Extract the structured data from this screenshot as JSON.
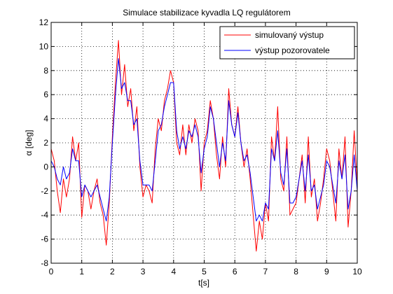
{
  "chart_data": {
    "type": "line",
    "title": "Simulace stabilizace kyvadla LQ regulátorem",
    "xlabel": "t[s]",
    "ylabel": "α [deg]",
    "xlim": [
      0,
      10
    ],
    "ylim": [
      -8,
      12
    ],
    "xticks": [
      "0",
      "1",
      "2",
      "3",
      "4",
      "5",
      "6",
      "7",
      "8",
      "9",
      "10"
    ],
    "yticks": [
      "-8",
      "-6",
      "-4",
      "-2",
      "0",
      "2",
      "4",
      "6",
      "8",
      "10",
      "12"
    ],
    "grid": true,
    "legend_position": "top-right",
    "x": [
      0,
      0.1,
      0.2,
      0.3,
      0.4,
      0.5,
      0.6,
      0.7,
      0.8,
      0.9,
      1.0,
      1.1,
      1.2,
      1.3,
      1.4,
      1.5,
      1.6,
      1.7,
      1.8,
      1.9,
      2.0,
      2.1,
      2.2,
      2.3,
      2.4,
      2.5,
      2.6,
      2.7,
      2.8,
      2.9,
      3.0,
      3.1,
      3.2,
      3.3,
      3.4,
      3.5,
      3.6,
      3.7,
      3.8,
      3.9,
      4.0,
      4.1,
      4.2,
      4.3,
      4.4,
      4.5,
      4.6,
      4.7,
      4.8,
      4.9,
      5.0,
      5.1,
      5.2,
      5.3,
      5.4,
      5.5,
      5.6,
      5.7,
      5.8,
      5.9,
      6.0,
      6.1,
      6.2,
      6.3,
      6.4,
      6.5,
      6.6,
      6.7,
      6.8,
      6.9,
      7.0,
      7.1,
      7.2,
      7.3,
      7.4,
      7.5,
      7.6,
      7.7,
      7.8,
      7.9,
      8.0,
      8.1,
      8.2,
      8.3,
      8.4,
      8.5,
      8.6,
      8.7,
      8.8,
      8.9,
      9.0,
      9.1,
      9.2,
      9.3,
      9.4,
      9.5,
      9.6,
      9.7,
      9.8,
      9.9,
      10.0
    ],
    "series": [
      {
        "name": "simulovaný výstup",
        "color": "#ff0000",
        "values": [
          1.5,
          0.5,
          -2.0,
          -3.8,
          -1.0,
          -2.5,
          -1.0,
          2.5,
          0.5,
          2.0,
          -4.2,
          -1.5,
          -2.0,
          -3.5,
          -2.0,
          -1.0,
          -3.0,
          -4.0,
          -6.5,
          -3.0,
          2.5,
          7.0,
          10.5,
          6.0,
          8.5,
          5.0,
          6.5,
          3.0,
          5.0,
          0.0,
          -2.5,
          -1.5,
          -2.0,
          -3.0,
          1.5,
          4.0,
          3.0,
          5.5,
          6.5,
          8.0,
          7.0,
          2.0,
          1.0,
          3.5,
          1.0,
          3.5,
          2.0,
          4.0,
          3.0,
          -2.0,
          2.0,
          3.0,
          5.5,
          4.0,
          1.0,
          -1.0,
          2.5,
          0.0,
          6.5,
          3.5,
          2.5,
          5.0,
          2.0,
          0.0,
          1.5,
          -1.0,
          -4.0,
          -7.0,
          -4.5,
          -6.0,
          -3.0,
          -4.5,
          2.5,
          0.5,
          5.0,
          -1.0,
          -2.0,
          2.5,
          -4.0,
          -3.5,
          -3.0,
          -1.0,
          1.0,
          -3.0,
          2.5,
          -2.5,
          -1.0,
          -4.5,
          -3.0,
          -1.0,
          1.5,
          0.5,
          -2.0,
          -4.5,
          1.5,
          -1.0,
          2.5,
          -5.0,
          -2.0,
          3.0,
          -1.5
        ]
      },
      {
        "name": "výstup pozorovatele",
        "color": "#0000ff",
        "values": [
          0.5,
          0.0,
          -1.0,
          -1.5,
          0.0,
          -1.0,
          -0.5,
          1.5,
          0.5,
          0.5,
          -2.5,
          -1.5,
          -2.0,
          -2.5,
          -2.0,
          -1.5,
          -2.5,
          -3.5,
          -4.5,
          -2.5,
          2.0,
          6.0,
          9.0,
          6.5,
          7.0,
          5.5,
          5.5,
          3.5,
          4.0,
          0.5,
          -1.5,
          -1.5,
          -1.5,
          -2.0,
          0.5,
          3.0,
          3.5,
          5.0,
          6.0,
          7.0,
          7.0,
          3.0,
          1.5,
          2.5,
          1.5,
          3.0,
          2.5,
          3.5,
          2.5,
          -0.5,
          1.5,
          2.5,
          5.0,
          4.0,
          2.0,
          0.0,
          2.0,
          0.5,
          5.5,
          3.5,
          2.5,
          4.5,
          2.0,
          0.5,
          1.0,
          -0.5,
          -2.5,
          -4.5,
          -4.0,
          -4.5,
          -3.0,
          -3.5,
          1.5,
          0.5,
          3.0,
          -0.5,
          -1.5,
          1.5,
          -3.0,
          -3.0,
          -2.5,
          -1.0,
          0.5,
          -2.0,
          1.0,
          -2.0,
          -1.5,
          -3.5,
          -2.5,
          -1.5,
          0.5,
          0.0,
          -1.5,
          -3.0,
          0.5,
          -1.0,
          1.0,
          -3.5,
          -2.0,
          1.0,
          -2.0
        ]
      }
    ]
  }
}
